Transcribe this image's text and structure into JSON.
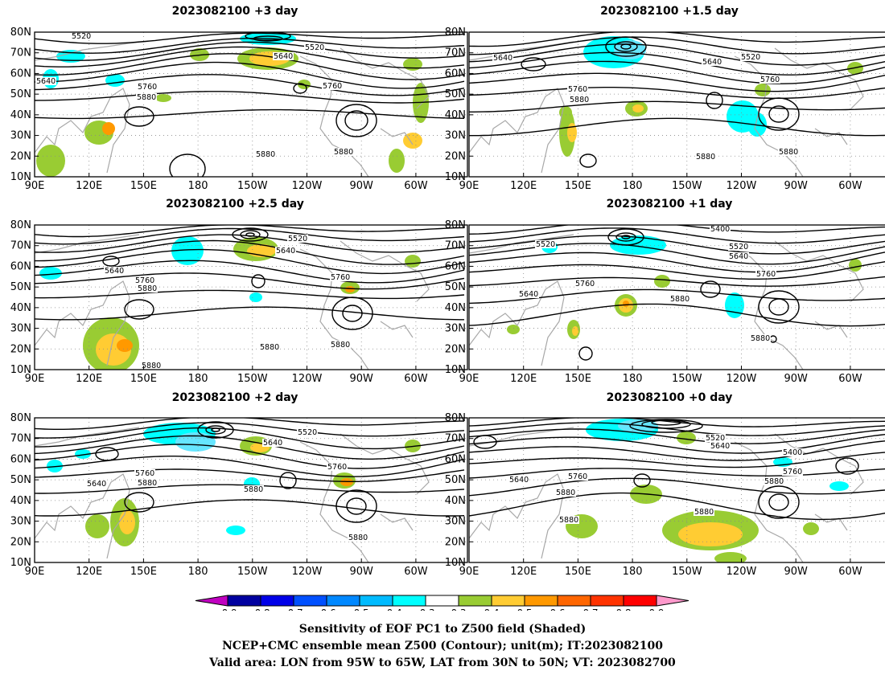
{
  "panels": [
    {
      "title": "2023082100 +3 day",
      "contour_labels": [
        "5520",
        "5640",
        "5520",
        "5640",
        "5760",
        "5880",
        "5760",
        "5880",
        "5880"
      ]
    },
    {
      "title": "2023082100 +1.5 day",
      "contour_labels": [
        "5640",
        "5640",
        "5520",
        "5760",
        "5880",
        "5760",
        "5880",
        "5880"
      ]
    },
    {
      "title": "2023082100 +2.5 day",
      "contour_labels": [
        "5640",
        "5520",
        "5640",
        "5760",
        "5880",
        "5760",
        "5880",
        "5880",
        "5880"
      ]
    },
    {
      "title": "2023082100 +1 day",
      "contour_labels": [
        "5520",
        "5400",
        "5520",
        "5640",
        "5640",
        "5760",
        "5880",
        "5760",
        "5880"
      ]
    },
    {
      "title": "2023082100 +2 day",
      "contour_labels": [
        "5640",
        "5520",
        "5640",
        "5760",
        "5880",
        "5760",
        "5880",
        "5880"
      ]
    },
    {
      "title": "2023082100 +0 day",
      "contour_labels": [
        "5640",
        "5520",
        "5640",
        "5760",
        "5880",
        "5880",
        "5760",
        "5880",
        "5400",
        "5880"
      ]
    }
  ],
  "map": {
    "lat_ticks": [
      "80N",
      "70N",
      "60N",
      "50N",
      "40N",
      "30N",
      "20N",
      "10N"
    ],
    "lon_ticks": [
      "90E",
      "120E",
      "150E",
      "180",
      "150W",
      "120W",
      "90W",
      "60W"
    ]
  },
  "colorbar": {
    "labels": [
      "-0.9",
      "-0.8",
      "-0.7",
      "-0.6",
      "-0.5",
      "-0.4",
      "-0.3",
      "0.3",
      "0.4",
      "0.5",
      "0.6",
      "0.7",
      "0.8",
      "0.9"
    ],
    "colors": [
      "#c000c0",
      "#0000a0",
      "#0000e8",
      "#0050ff",
      "#0088ff",
      "#00bbff",
      "#00ffff",
      "#ffffff",
      "#99cc33",
      "#ffcc33",
      "#ff9900",
      "#ff6600",
      "#ff3300",
      "#ff0000",
      "#ff99cc"
    ]
  },
  "caption": {
    "line1": "Sensitivity of EOF PC1 to Z500 field (Shaded)",
    "line2": "NCEP+CMC ensemble mean Z500 (Contour); unit(m); IT:2023082100",
    "line3": "Valid area: LON from 95W to 65W, LAT from 30N to 50N; VT: 2023082700"
  }
}
